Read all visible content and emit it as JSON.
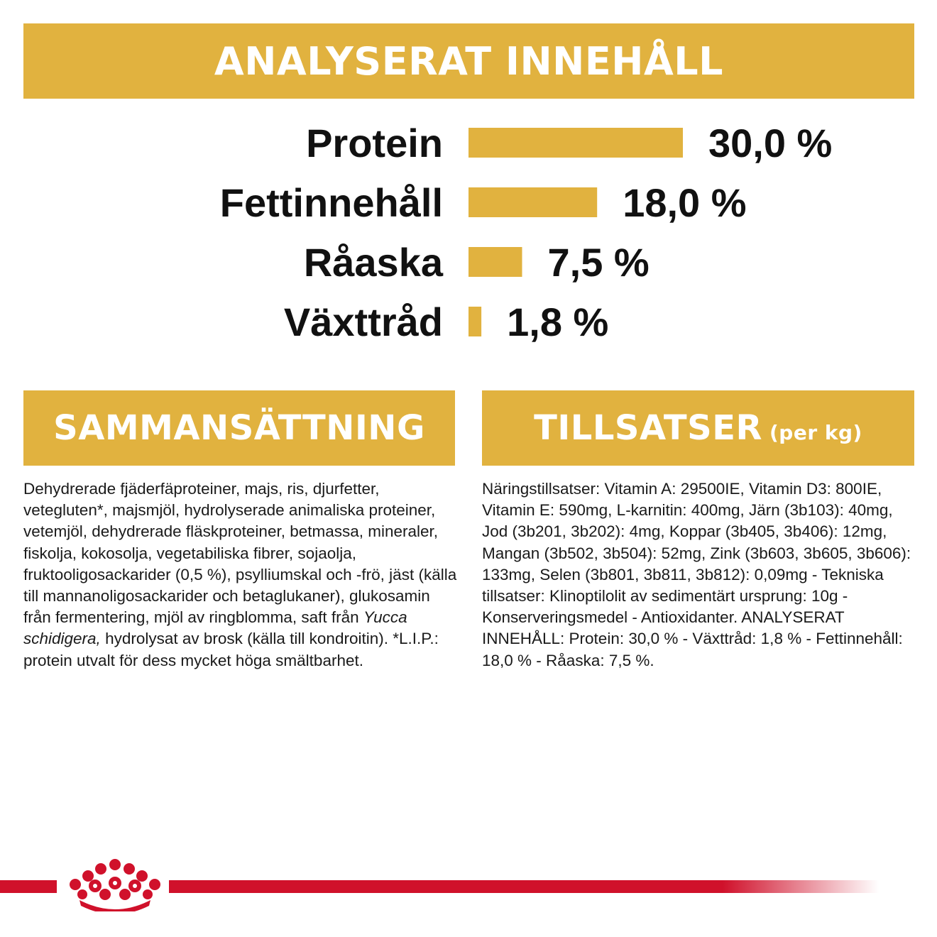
{
  "brand_color": "#E1B23F",
  "accent_red": "#D0112B",
  "headers": {
    "analyzed": "ANALYSERAT INNEHÅLL",
    "composition": "SAMMANSÄTTNING",
    "additives": "TILLSATSER",
    "additives_unit": "(per kg)"
  },
  "chart_data": {
    "type": "bar",
    "orientation": "horizontal",
    "categories": [
      "Protein",
      "Fettinnehåll",
      "Råaska",
      "Växttråd"
    ],
    "values": [
      30.0,
      18.0,
      7.5,
      1.8
    ],
    "value_labels": [
      "30,0 %",
      "18,0 %",
      "7,5 %",
      "1,8 %"
    ],
    "bar_color": "#E1B23F",
    "xlim": [
      0,
      30
    ]
  },
  "composition": {
    "text_before_italic": "Dehydrerade fjäderfäproteiner, majs, ris, djurfetter, vetegluten*, majsmjöl, hydrolyserade animaliska proteiner, vetemjöl, dehydrerade fläskproteiner, betmassa, mineraler, fiskolja, kokosolja, vegetabiliska fibrer, sojaolja, fruktooligosackarider (0,5 %), psylliumskal och -frö, jäst (källa till mannanoligosackarider och betaglukaner), glukosamin från fermentering, mjöl av ringblomma, saft från ",
    "italic": "Yucca schidigera,",
    "text_after_italic": " hydrolysat av brosk (källa till kondroitin). *L.I.P.: protein utvalt för dess mycket höga smältbarhet."
  },
  "additives": {
    "text": "Näringstillsatser: Vitamin A: 29500IE, Vitamin D3: 800IE, Vitamin E: 590mg, L-karnitin: 400mg, Järn (3b103): 40mg, Jod (3b201, 3b202): 4mg, Koppar (3b405, 3b406): 12mg, Mangan (3b502, 3b504): 52mg, Zink (3b603, 3b605, 3b606): 133mg, Selen (3b801, 3b811, 3b812): 0,09mg - Tekniska tillsatser: Klinoptilolit av sedimentärt ursprung: 10g - Konserveringsmedel - Antioxidanter. ANALYSERAT INNEHÅLL: Protein: 30,0 % - Växttråd: 1,8 % - Fettinnehåll: 18,0 % - Råaska: 7,5 %."
  },
  "footer": {
    "logo_icon": "crown-icon"
  }
}
